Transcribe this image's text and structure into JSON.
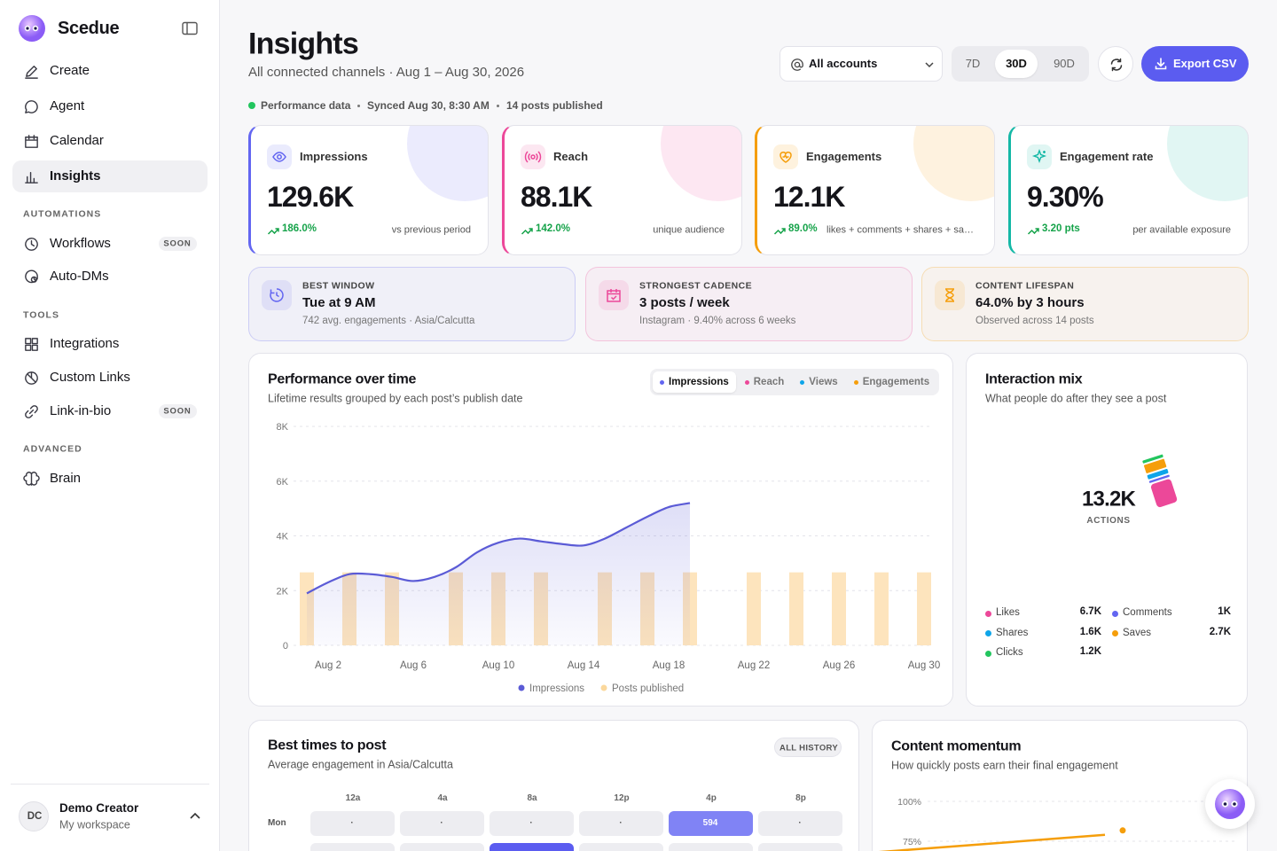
{
  "sidebar": {
    "brand": "Scedue",
    "nav": [
      {
        "label": "Create"
      },
      {
        "label": "Agent"
      },
      {
        "label": "Calendar"
      },
      {
        "label": "Insights"
      }
    ],
    "active_nav": 3,
    "sections": [
      {
        "title": "AUTOMATIONS",
        "items": [
          {
            "label": "Workflows",
            "badge": "SOON"
          },
          {
            "label": "Auto-DMs"
          }
        ]
      },
      {
        "title": "TOOLS",
        "items": [
          {
            "label": "Integrations"
          },
          {
            "label": "Custom Links"
          },
          {
            "label": "Link-in-bio",
            "badge": "SOON"
          }
        ]
      },
      {
        "title": "ADVANCED",
        "items": [
          {
            "label": "Brain"
          }
        ]
      }
    ],
    "user": {
      "initials": "DC",
      "name": "Demo Creator",
      "workspace": "My workspace"
    }
  },
  "header": {
    "title": "Insights",
    "subtitle": "All connected channels · Aug 1 – Aug 30, 2026",
    "account_select": "All accounts",
    "ranges": [
      "7D",
      "30D",
      "90D"
    ],
    "active_range": 1,
    "export": "Export CSV"
  },
  "status": {
    "label": "Performance data",
    "synced": "Synced Aug 30, 8:30 AM",
    "posts": "14 posts published"
  },
  "kpis": [
    {
      "label": "Impressions",
      "value": "129.6K",
      "change": "186.0%",
      "note": "vs previous period",
      "color": "#6366f1"
    },
    {
      "label": "Reach",
      "value": "88.1K",
      "change": "142.0%",
      "note": "unique audience",
      "color": "#ec4899"
    },
    {
      "label": "Engagements",
      "value": "12.1K",
      "change": "89.0%",
      "note": "likes + comments + shares + saves",
      "color": "#f59e0b"
    },
    {
      "label": "Engagement rate",
      "value": "9.30%",
      "change": "3.20 pts",
      "note": "per available exposure",
      "color": "#14b8a6"
    }
  ],
  "highlights": [
    {
      "label": "BEST WINDOW",
      "value": "Tue at 9 AM",
      "note": "742 avg. engagements · Asia/Calcutta",
      "color": "#6366f1"
    },
    {
      "label": "STRONGEST CADENCE",
      "value": "3 posts / week",
      "note": "Instagram · 9.40% across 6 weeks",
      "color": "#ec4899"
    },
    {
      "label": "CONTENT LIFESPAN",
      "value": "64.0% by 3 hours",
      "note": "Observed across 14 posts",
      "color": "#f59e0b"
    }
  ],
  "chart_data": [
    {
      "type": "line",
      "title": "Performance over time",
      "subtitle": "Lifetime results grouped by each post’s publish date",
      "tabs": [
        {
          "name": "Impressions",
          "color": "#6366f1"
        },
        {
          "name": "Reach",
          "color": "#ec4899"
        },
        {
          "name": "Views",
          "color": "#0ea5e9"
        },
        {
          "name": "Engagements",
          "color": "#f59e0b"
        }
      ],
      "active_tab": 0,
      "categories": [
        null,
        "Aug 2",
        null,
        null,
        null,
        "Aug 6",
        null,
        null,
        null,
        "Aug 10",
        null,
        null,
        null,
        "Aug 14",
        null,
        null,
        null,
        "Aug 18",
        null,
        null,
        null,
        "Aug 22",
        null,
        null,
        null,
        "Aug 26",
        null,
        null,
        null,
        "Aug 30"
      ],
      "series": [
        {
          "name": "Impressions",
          "color": "#5b5bd6",
          "type": "line",
          "values": [
            1900,
            2300,
            2600,
            2600,
            2500,
            2350,
            2500,
            2850,
            3400,
            3750,
            3900,
            3800,
            3700,
            3650,
            3900,
            4300,
            4700,
            5050,
            5200,
            null,
            null,
            null,
            null,
            null,
            null,
            null,
            null,
            null,
            null,
            null
          ]
        },
        {
          "name": "Posts published",
          "color": "#fde4bd",
          "type": "bar",
          "axis": "y2",
          "values": [
            1,
            null,
            1,
            null,
            1,
            null,
            null,
            1,
            null,
            1,
            null,
            1,
            null,
            null,
            1,
            null,
            1,
            null,
            1,
            null,
            null,
            1,
            null,
            1,
            null,
            1,
            null,
            1,
            null,
            1
          ]
        }
      ],
      "ylim": [
        0,
        8000
      ],
      "yticks": [
        0,
        {
          "value": 2000,
          "label": "2K"
        },
        {
          "value": 4000,
          "label": "4K"
        },
        {
          "value": 6000,
          "label": "6K"
        },
        {
          "value": 8000,
          "label": "8K"
        }
      ],
      "y2lim": [
        0,
        3
      ],
      "grid": true,
      "legend": "bottom"
    },
    {
      "type": "pie",
      "title": "Interaction mix",
      "subtitle": "What people do after they see a post",
      "total": "13.2K",
      "total_label": "ACTIONS",
      "categories": [
        "Likes",
        "Comments",
        "Shares",
        "Saves",
        "Clicks"
      ],
      "values": [
        6700,
        1000,
        1600,
        2700,
        1200
      ],
      "value_labels": [
        "6.7K",
        "1K",
        "1.6K",
        "2.7K",
        "1.2K"
      ],
      "colors": [
        "#ec4899",
        "#6366f1",
        "#0ea5e9",
        "#f59e0b",
        "#22c55e"
      ]
    },
    {
      "type": "line",
      "title": "Content momentum",
      "subtitle": "How quickly posts earn their final engagement",
      "ylim": [
        0,
        100
      ],
      "yticks": [
        {
          "value": 100,
          "label": "100%"
        },
        {
          "value": 75,
          "label": "75%"
        }
      ],
      "grid": true,
      "series": [
        {
          "color": "#f59e0b",
          "values": [
            68,
            79
          ]
        }
      ]
    }
  ],
  "best_times": {
    "title": "Best times to post",
    "subtitle": "Average engagement in Asia/Calcutta",
    "badge": "ALL HISTORY",
    "columns": [
      "12a",
      "4a",
      "8a",
      "12p",
      "4p",
      "8p"
    ],
    "rows": [
      {
        "day": "Mon",
        "cells": [
          "·",
          "·",
          "·",
          "·",
          "594",
          "·"
        ]
      }
    ]
  }
}
